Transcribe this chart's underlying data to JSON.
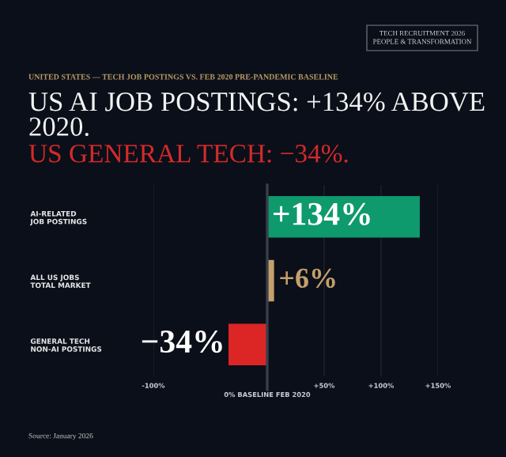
{
  "chart_data": {
    "type": "bar",
    "orientation": "horizontal",
    "title": "US AI JOB POSTINGS: +134% ABOVE 2020.",
    "subtitle": "US GENERAL TECH: −34%.",
    "annotations": [
      "UNITED STATES — TECH JOB POSTINGS VS. FEB 2020 PRE-PANDEMIC BASELINE",
      "TECH RECRUITMENT 2026\nPEOPLE & TRANSFORMATION",
      "Source: January 2026"
    ],
    "categories": [
      "AI-RELATED\nJOB POSTINGS",
      "ALL US JOBS\nTOTAL MARKET",
      "GENERAL TECH\nNON-AI POSTINGS"
    ],
    "values": [
      134,
      6,
      -34
    ],
    "colors": [
      "#0e9a6c",
      "#c4a06c",
      "#dc2626"
    ],
    "value_labels": [
      "+134%",
      "+6%",
      "−34%"
    ],
    "xlim": [
      -100,
      150
    ],
    "xticks": [
      {
        "value": -100,
        "label": "-100%"
      },
      {
        "value": 50,
        "label": "+50%"
      },
      {
        "value": 100,
        "label": "+100%"
      },
      {
        "value": 150,
        "label": "+150%"
      }
    ],
    "ref_lines": [
      {
        "axis": "x",
        "value": 0,
        "label": "0% BASELINE FEB 2020",
        "color": "#3a3f4a"
      }
    ],
    "grid": "x"
  }
}
